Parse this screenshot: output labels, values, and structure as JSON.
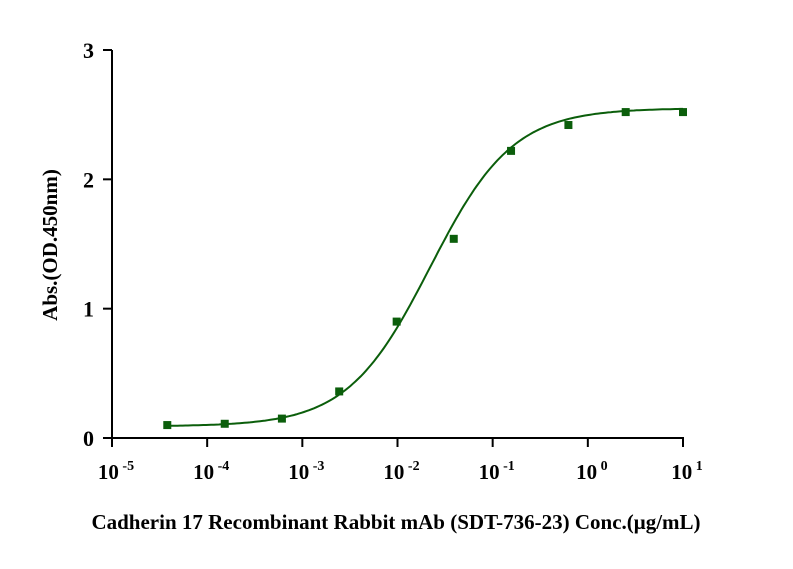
{
  "chart_data": {
    "type": "scatter",
    "title": "",
    "xlabel": "Cadherin 17 Recombinant Rabbit mAb (SDT-736-23) Conc.(μg/mL)",
    "ylabel": "Abs.(OD.450nm)",
    "xscale": "log",
    "xlim": [
      1e-05,
      10
    ],
    "ylim": [
      0,
      3
    ],
    "x_ticks": [
      {
        "base": "10",
        "exp": "-5"
      },
      {
        "base": "10",
        "exp": "-4"
      },
      {
        "base": "10",
        "exp": "-3"
      },
      {
        "base": "10",
        "exp": "-2"
      },
      {
        "base": "10",
        "exp": "-1"
      },
      {
        "base": "10",
        "exp": "0"
      },
      {
        "base": "10",
        "exp": "1"
      }
    ],
    "y_ticks": [
      "0",
      "1",
      "2",
      "3"
    ],
    "grid": false,
    "series": [
      {
        "name": "Cadherin 17 Recombinant Rabbit mAb",
        "color": "#0b5e0b",
        "marker": "square",
        "x": [
          3.81e-05,
          0.000153,
          0.00061,
          0.00244,
          0.0098,
          0.039,
          0.156,
          0.625,
          2.5,
          10
        ],
        "y": [
          0.1,
          0.11,
          0.15,
          0.36,
          0.9,
          1.54,
          2.22,
          2.42,
          2.52,
          2.52
        ],
        "fit": {
          "model": "4PL",
          "bottom": 0.09,
          "top": 2.55,
          "ec50": 0.022,
          "hill": 1.0
        }
      }
    ]
  }
}
